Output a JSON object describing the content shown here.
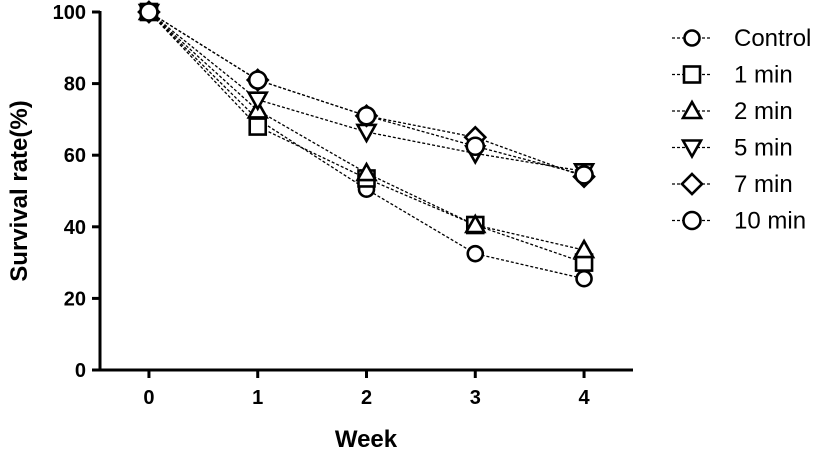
{
  "chart_data": {
    "type": "line",
    "xlabel": "Week",
    "ylabel": "Survival rate(%)",
    "x": [
      0,
      1,
      2,
      3,
      4
    ],
    "xticks": [
      "0",
      "1",
      "2",
      "3",
      "4"
    ],
    "yticks": [
      "0",
      "20",
      "40",
      "60",
      "80",
      "100"
    ],
    "xlim": [
      -0.45,
      4.45
    ],
    "ylim": [
      0,
      100
    ],
    "grid": false,
    "legend_position": "right",
    "series": [
      {
        "name": "Control",
        "marker": "circle",
        "values": [
          100,
          70,
          50.5,
          32.5,
          25.5
        ]
      },
      {
        "name": "1 min",
        "marker": "square",
        "values": [
          100,
          68,
          53.5,
          40.5,
          30
        ]
      },
      {
        "name": "2 min",
        "marker": "triangle-up",
        "values": [
          100,
          72.5,
          55,
          40.5,
          33.5
        ]
      },
      {
        "name": "5 min",
        "marker": "triangle-down",
        "values": [
          100,
          75.5,
          66.5,
          60.5,
          55.5
        ]
      },
      {
        "name": "7 min",
        "marker": "diamond",
        "values": [
          100,
          81,
          71,
          65,
          54
        ]
      },
      {
        "name": "10 min",
        "marker": "circle-large",
        "values": [
          100,
          81,
          71,
          62.5,
          54.5
        ]
      }
    ]
  }
}
